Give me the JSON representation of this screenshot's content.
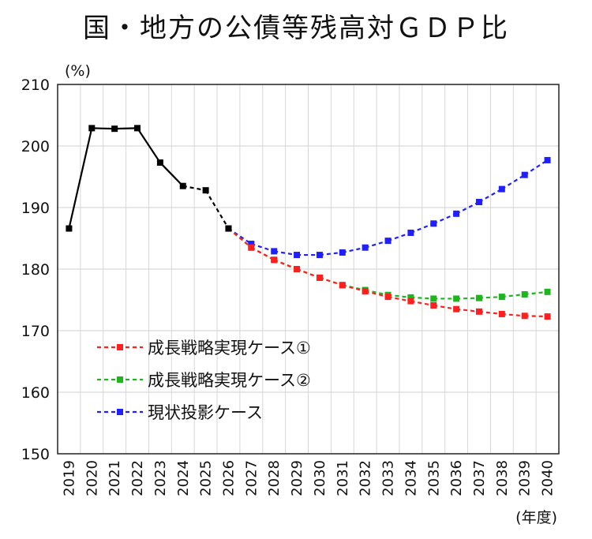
{
  "title": "国・地方の公債等残高対ＧＤＰ比",
  "chart_data": {
    "type": "line",
    "title": "国・地方の公債等残高対ＧＤＰ比",
    "y_unit_label": "(%)",
    "x_unit_label": "(年度)",
    "ylim": [
      150,
      210
    ],
    "yticks": [
      150,
      160,
      170,
      180,
      190,
      200,
      210
    ],
    "x": [
      "2019",
      "2020",
      "2021",
      "2022",
      "2023",
      "2024",
      "2025",
      "2026",
      "2027",
      "2028",
      "2029",
      "2030",
      "2031",
      "2032",
      "2033",
      "2034",
      "2035",
      "2036",
      "2037",
      "2038",
      "2039",
      "2040"
    ],
    "grid": true,
    "legend_position": "lower-left",
    "series": [
      {
        "name": "",
        "color": "#000000",
        "style": "solid-then-dashed",
        "values": [
          186.6,
          202.9,
          202.8,
          202.9,
          197.3,
          193.5,
          192.8,
          186.6,
          null,
          null,
          null,
          null,
          null,
          null,
          null,
          null,
          null,
          null,
          null,
          null,
          null,
          null
        ]
      },
      {
        "name": "成長戦略実現ケース①",
        "color": "#ff1f1f",
        "style": "dashed",
        "values": [
          null,
          null,
          null,
          null,
          null,
          null,
          null,
          186.6,
          183.5,
          181.5,
          180.0,
          178.6,
          177.4,
          176.4,
          175.5,
          174.8,
          174.1,
          173.5,
          173.1,
          172.7,
          172.4,
          172.3
        ]
      },
      {
        "name": "成長戦略実現ケース②",
        "color": "#1fb51f",
        "style": "dashed",
        "values": [
          null,
          null,
          null,
          null,
          null,
          null,
          null,
          186.6,
          183.5,
          181.5,
          180.0,
          178.6,
          177.4,
          176.6,
          175.8,
          175.4,
          175.2,
          175.2,
          175.3,
          175.5,
          175.9,
          176.3
        ]
      },
      {
        "name": "現状投影ケース",
        "color": "#1f1fff",
        "style": "dashed",
        "values": [
          null,
          null,
          null,
          null,
          null,
          null,
          null,
          186.6,
          184.1,
          182.9,
          182.3,
          182.3,
          182.7,
          183.5,
          184.6,
          185.9,
          187.4,
          189.0,
          190.9,
          193.0,
          195.3,
          197.7
        ]
      }
    ]
  }
}
